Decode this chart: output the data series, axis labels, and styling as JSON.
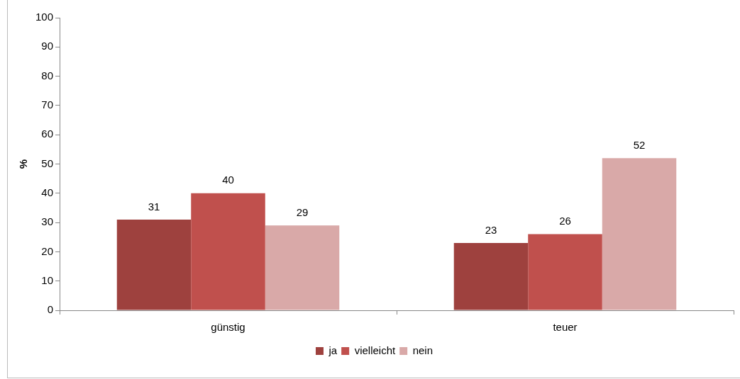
{
  "chart_data": {
    "type": "bar",
    "ylabel": "%",
    "categories": [
      "günstig",
      "teuer"
    ],
    "series": [
      {
        "name": "ja",
        "color": "#9e413e",
        "values": [
          31,
          23
        ]
      },
      {
        "name": "vielleicht",
        "color": "#c0504d",
        "values": [
          40,
          26
        ]
      },
      {
        "name": "nein",
        "color": "#d9a9a8",
        "values": [
          29,
          52
        ]
      }
    ],
    "ylim": [
      0,
      100
    ],
    "yticks": [
      0,
      10,
      20,
      30,
      40,
      50,
      60,
      70,
      80,
      90,
      100
    ],
    "grid": false,
    "legend": "bottom",
    "data_labels": true
  }
}
